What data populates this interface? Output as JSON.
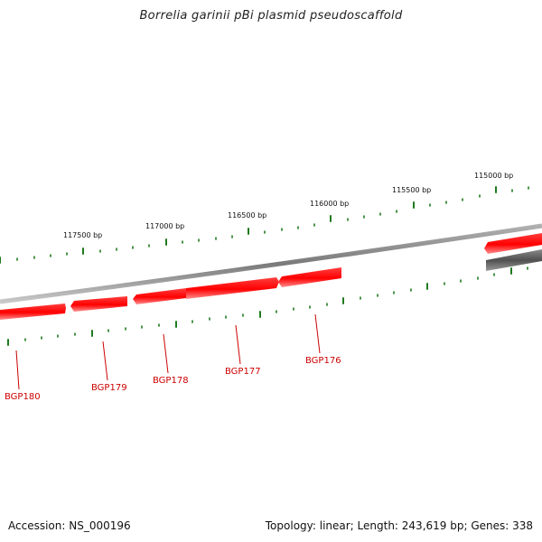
{
  "title": "Borrelia garinii pBi plasmid pseudoscaffold",
  "accession_text": "Accession: NS_000196",
  "summary_text": "Topology: linear; Length: 243,619 bp; Genes: 338",
  "colors": {
    "forward_gene": "#ff0000",
    "reverse_gene": "#606060",
    "backbone": "#8c8c8c",
    "ticks": "#1f7a1f",
    "gene_label": "#cc0000"
  },
  "scale_labels": [
    "115000 bp",
    "115500 bp",
    "116000 bp",
    "116500 bp",
    "117000 bp",
    "117500 bp"
  ],
  "genes": [
    {
      "id": "BGP176",
      "strand": "+",
      "labeled": true
    },
    {
      "id": "BGP177",
      "strand": "+",
      "labeled": true
    },
    {
      "id": "BGP178",
      "strand": "+",
      "labeled": true
    },
    {
      "id": "BGP179",
      "strand": "+",
      "labeled": true
    },
    {
      "id": "BGP180",
      "strand": "+",
      "labeled": true
    },
    {
      "id": "",
      "strand": "+",
      "labeled": false
    },
    {
      "id": "",
      "strand": "-",
      "labeled": false
    }
  ]
}
